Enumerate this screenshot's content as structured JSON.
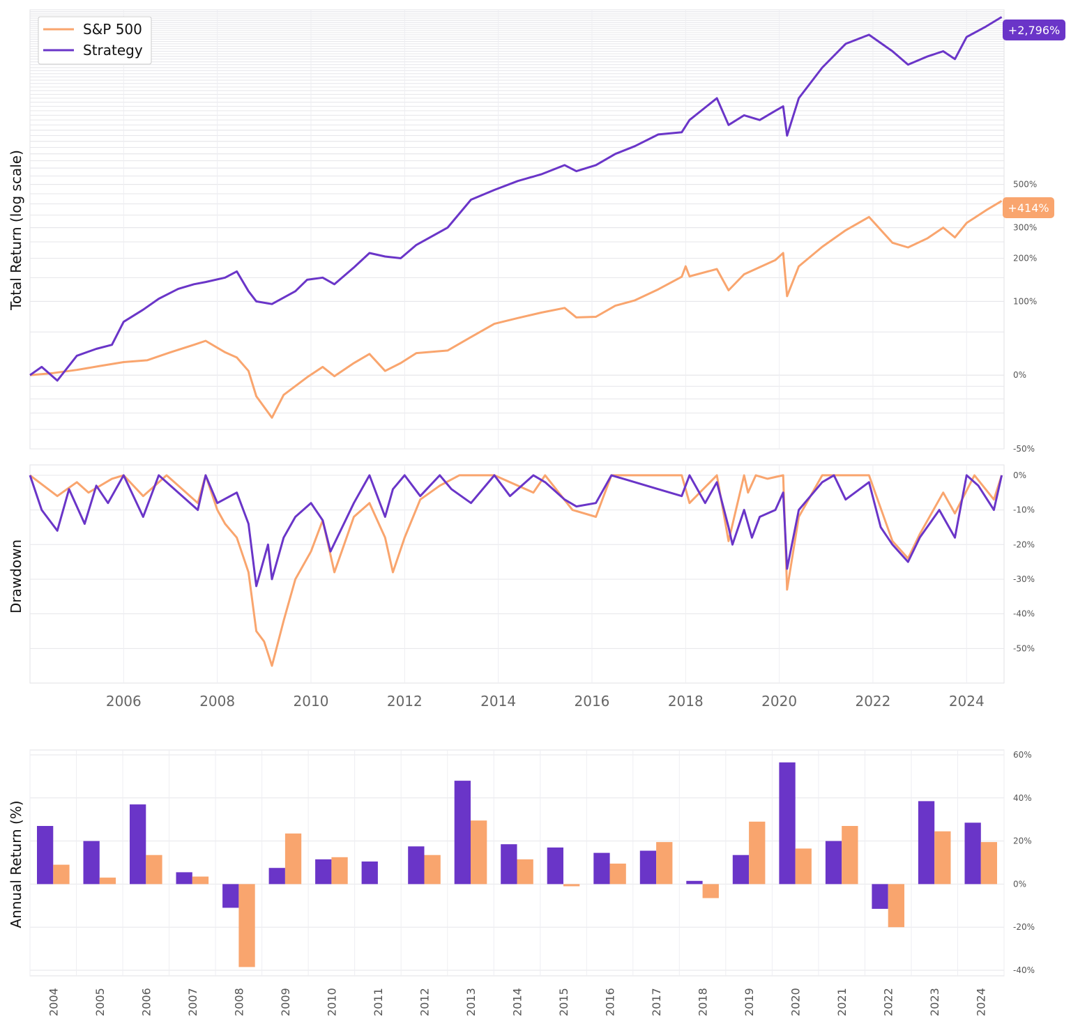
{
  "colors": {
    "strategy": "#6a35c8",
    "sp500": "#f9a56e"
  },
  "chart_data": [
    {
      "type": "line",
      "panel": "total-return",
      "ylabel": "Total Return (log scale)",
      "yscale": "log",
      "ylim": [
        -50,
        3000
      ],
      "yticks": [
        "-50%",
        "0%",
        "100%",
        "200%",
        "300%",
        "500%"
      ],
      "legend": {
        "position": "top-left",
        "entries": [
          "S&P 500",
          "Strategy"
        ]
      },
      "end_labels": {
        "strategy": "+2,796%",
        "sp500": "+414%"
      },
      "series": [
        {
          "name": "S&P 500",
          "key": "sp500",
          "x": [
            "2004-01",
            "2004-07",
            "2005-01",
            "2005-07",
            "2006-01",
            "2006-07",
            "2007-01",
            "2007-07",
            "2007-10",
            "2008-03",
            "2008-06",
            "2008-09",
            "2008-11",
            "2009-03",
            "2009-06",
            "2009-12",
            "2010-04",
            "2010-07",
            "2010-12",
            "2011-04",
            "2011-08",
            "2011-12",
            "2012-04",
            "2012-12",
            "2013-06",
            "2013-12",
            "2014-06",
            "2014-12",
            "2015-06",
            "2015-09",
            "2016-02",
            "2016-07",
            "2016-12",
            "2017-06",
            "2017-12",
            "2018-01",
            "2018-02",
            "2018-09",
            "2018-12",
            "2019-04",
            "2019-12",
            "2020-02",
            "2020-03",
            "2020-06",
            "2020-12",
            "2021-06",
            "2021-12",
            "2022-06",
            "2022-10",
            "2023-03",
            "2023-07",
            "2023-10",
            "2024-01",
            "2024-06",
            "2024-10"
          ],
          "y": [
            0,
            2,
            5,
            9,
            13,
            15,
            24,
            33,
            38,
            24,
            18,
            4,
            -18,
            -33,
            -17,
            -2,
            8,
            -1,
            12,
            22,
            4,
            12,
            23,
            26,
            43,
            62,
            71,
            80,
            88,
            72,
            73,
            92,
            102,
            124,
            152,
            178,
            153,
            171,
            122,
            158,
            195,
            215,
            110,
            178,
            234,
            290,
            342,
            247,
            232,
            262,
            300,
            265,
            318,
            371,
            414
          ]
        },
        {
          "name": "Strategy",
          "key": "strategy",
          "x": [
            "2004-01",
            "2004-04",
            "2004-08",
            "2005-01",
            "2005-06",
            "2005-10",
            "2006-01",
            "2006-06",
            "2006-10",
            "2007-03",
            "2007-07",
            "2007-10",
            "2008-03",
            "2008-06",
            "2008-09",
            "2008-11",
            "2009-03",
            "2009-09",
            "2009-12",
            "2010-04",
            "2010-07",
            "2010-12",
            "2011-04",
            "2011-08",
            "2011-12",
            "2012-04",
            "2012-12",
            "2013-06",
            "2013-12",
            "2014-06",
            "2014-12",
            "2015-06",
            "2015-09",
            "2016-02",
            "2016-07",
            "2016-12",
            "2017-06",
            "2017-12",
            "2018-02",
            "2018-09",
            "2018-12",
            "2019-04",
            "2019-08",
            "2019-12",
            "2020-02",
            "2020-03",
            "2020-06",
            "2020-12",
            "2021-06",
            "2021-12",
            "2022-06",
            "2022-10",
            "2023-03",
            "2023-07",
            "2023-10",
            "2024-01",
            "2024-06",
            "2024-10"
          ],
          "y": [
            0,
            8,
            -5,
            20,
            28,
            33,
            65,
            85,
            105,
            125,
            135,
            140,
            150,
            165,
            120,
            100,
            95,
            120,
            145,
            150,
            135,
            175,
            215,
            205,
            200,
            240,
            300,
            420,
            470,
            520,
            560,
            620,
            580,
            620,
            700,
            760,
            860,
            880,
            1000,
            1250,
            950,
            1050,
            1000,
            1100,
            1150,
            850,
            1250,
            1700,
            2150,
            2350,
            2000,
            1750,
            1900,
            2000,
            1850,
            2300,
            2550,
            2796
          ]
        }
      ]
    },
    {
      "type": "area",
      "panel": "drawdown",
      "ylabel": "Drawdown",
      "ylim": [
        -60,
        3
      ],
      "yticks": [
        "0%",
        "-10%",
        "-20%",
        "-30%",
        "-40%",
        "-50%"
      ],
      "xticks": [
        "2006",
        "2008",
        "2010",
        "2012",
        "2014",
        "2016",
        "2018",
        "2020",
        "2022",
        "2024"
      ],
      "series": [
        {
          "name": "S&P 500",
          "key": "sp500",
          "x": [
            "2004-01",
            "2004-08",
            "2005-01",
            "2005-04",
            "2005-10",
            "2006-01",
            "2006-06",
            "2006-12",
            "2007-03",
            "2007-08",
            "2007-10",
            "2008-01",
            "2008-03",
            "2008-06",
            "2008-09",
            "2008-11",
            "2009-01",
            "2009-03",
            "2009-06",
            "2009-09",
            "2010-01",
            "2010-04",
            "2010-07",
            "2010-12",
            "2011-04",
            "2011-08",
            "2011-10",
            "2012-01",
            "2012-05",
            "2012-10",
            "2013-03",
            "2013-12",
            "2014-10",
            "2015-01",
            "2015-08",
            "2016-02",
            "2016-06",
            "2017-01",
            "2017-12",
            "2018-02",
            "2018-09",
            "2018-12",
            "2019-04",
            "2019-05",
            "2019-07",
            "2019-10",
            "2020-02",
            "2020-03",
            "2020-06",
            "2020-12",
            "2021-06",
            "2021-12",
            "2022-06",
            "2022-10",
            "2023-01",
            "2023-07",
            "2023-10",
            "2024-03",
            "2024-08",
            "2024-10"
          ],
          "y": [
            0,
            -6,
            -2,
            -5,
            -1,
            0,
            -6,
            0,
            -3,
            -8,
            0,
            -10,
            -14,
            -18,
            -28,
            -45,
            -48,
            -55,
            -42,
            -30,
            -22,
            -13,
            -28,
            -12,
            -8,
            -18,
            -28,
            -18,
            -7,
            -3,
            0,
            0,
            -5,
            0,
            -10,
            -12,
            0,
            0,
            0,
            -8,
            0,
            -19,
            0,
            -5,
            0,
            -1,
            0,
            -33,
            -12,
            0,
            0,
            0,
            -19,
            -24,
            -17,
            -5,
            -11,
            0,
            -7,
            0
          ]
        },
        {
          "name": "Strategy",
          "key": "strategy",
          "x": [
            "2004-01",
            "2004-04",
            "2004-08",
            "2004-11",
            "2005-03",
            "2005-06",
            "2005-09",
            "2006-01",
            "2006-06",
            "2006-10",
            "2007-03",
            "2007-08",
            "2007-10",
            "2008-01",
            "2008-06",
            "2008-09",
            "2008-11",
            "2009-02",
            "2009-03",
            "2009-06",
            "2009-09",
            "2010-01",
            "2010-04",
            "2010-06",
            "2010-12",
            "2011-04",
            "2011-08",
            "2011-10",
            "2012-01",
            "2012-05",
            "2012-10",
            "2013-01",
            "2013-06",
            "2013-12",
            "2014-04",
            "2014-10",
            "2015-01",
            "2015-06",
            "2015-09",
            "2016-02",
            "2016-06",
            "2016-12",
            "2017-06",
            "2017-12",
            "2018-02",
            "2018-06",
            "2018-09",
            "2018-12",
            "2019-01",
            "2019-04",
            "2019-06",
            "2019-08",
            "2019-12",
            "2020-02",
            "2020-03",
            "2020-06",
            "2020-12",
            "2021-03",
            "2021-06",
            "2021-12",
            "2022-03",
            "2022-06",
            "2022-10",
            "2023-01",
            "2023-06",
            "2023-10",
            "2024-01",
            "2024-04",
            "2024-08",
            "2024-10"
          ],
          "y": [
            0,
            -10,
            -16,
            -4,
            -14,
            -3,
            -8,
            0,
            -12,
            0,
            -5,
            -10,
            0,
            -8,
            -5,
            -14,
            -32,
            -20,
            -30,
            -18,
            -12,
            -8,
            -13,
            -22,
            -8,
            0,
            -12,
            -4,
            0,
            -6,
            0,
            -4,
            -8,
            0,
            -6,
            0,
            -2,
            -7,
            -9,
            -8,
            0,
            -2,
            -4,
            -6,
            0,
            -8,
            -2,
            -15,
            -20,
            -10,
            -18,
            -12,
            -10,
            -5,
            -27,
            -10,
            -2,
            0,
            -7,
            -2,
            -15,
            -20,
            -25,
            -18,
            -10,
            -18,
            0,
            -3,
            -10,
            0
          ]
        }
      ]
    },
    {
      "type": "bar",
      "panel": "annual-returns",
      "ylabel": "Annual Return (%)",
      "ylim": [
        -40,
        60
      ],
      "yticks": [
        "-40%",
        "-20%",
        "0%",
        "20%",
        "40%",
        "60%"
      ],
      "categories": [
        "2004",
        "2005",
        "2006",
        "2007",
        "2008",
        "2009",
        "2010",
        "2011",
        "2012",
        "2013",
        "2014",
        "2015",
        "2016",
        "2017",
        "2018",
        "2019",
        "2020",
        "2021",
        "2022",
        "2023",
        "2024"
      ],
      "series": [
        {
          "name": "Strategy",
          "key": "strategy",
          "values": [
            27,
            20,
            37,
            5.5,
            -11,
            7.5,
            11.5,
            10.5,
            17.5,
            48,
            18.5,
            17,
            14.5,
            15.5,
            1.5,
            13.5,
            56.5,
            20,
            -11.5,
            38.5,
            28.5
          ]
        },
        {
          "name": "S&P 500",
          "key": "sp500",
          "values": [
            9,
            3,
            13.5,
            3.5,
            -38.5,
            23.5,
            12.5,
            0,
            13.5,
            29.5,
            11.5,
            -1,
            9.5,
            19.5,
            -6.5,
            29,
            16.5,
            27,
            -20,
            24.5,
            19.5
          ]
        }
      ]
    }
  ]
}
